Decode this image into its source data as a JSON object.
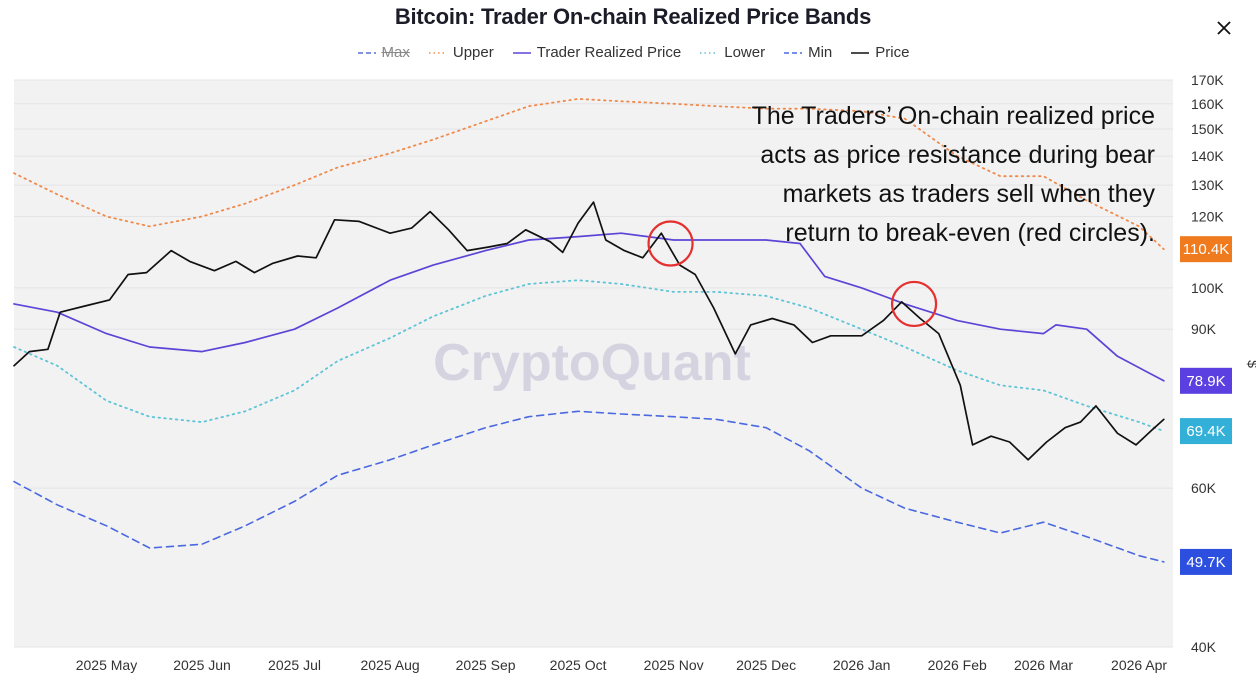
{
  "title": "Bitcoin: Trader On-chain Realized Price Bands",
  "watermark": "CryptoQuant",
  "y_axis_unit": "$",
  "close_icon": "close-icon",
  "annotation": {
    "lines": [
      "The Traders’ On-chain realized price",
      "acts as price resistance during bear",
      "markets as traders sell when they",
      "return to break-even (red circles)."
    ]
  },
  "chart_data": {
    "type": "line",
    "y_scale": "log",
    "ylim": [
      40000,
      170000
    ],
    "y_ticks": [
      {
        "value": 170000,
        "label": "170K"
      },
      {
        "value": 160000,
        "label": "160K"
      },
      {
        "value": 150000,
        "label": "150K"
      },
      {
        "value": 140000,
        "label": "140K"
      },
      {
        "value": 130000,
        "label": "130K"
      },
      {
        "value": 120000,
        "label": "120K"
      },
      {
        "value": 100000,
        "label": "100K"
      },
      {
        "value": 90000,
        "label": "90K"
      },
      {
        "value": 60000,
        "label": "60K"
      },
      {
        "value": 40000,
        "label": "40K"
      }
    ],
    "xlim": [
      "2025-04-01",
      "2026-04-12"
    ],
    "x_ticks": [
      {
        "date": "2025-05-01",
        "label": "2025 May"
      },
      {
        "date": "2025-06-01",
        "label": "2025 Jun"
      },
      {
        "date": "2025-07-01",
        "label": "2025 Jul"
      },
      {
        "date": "2025-08-01",
        "label": "2025 Aug"
      },
      {
        "date": "2025-09-01",
        "label": "2025 Sep"
      },
      {
        "date": "2025-10-01",
        "label": "2025 Oct"
      },
      {
        "date": "2025-11-01",
        "label": "2025 Nov"
      },
      {
        "date": "2025-12-01",
        "label": "2025 Dec"
      },
      {
        "date": "2026-01-01",
        "label": "2026 Jan"
      },
      {
        "date": "2026-02-01",
        "label": "2026 Feb"
      },
      {
        "date": "2026-03-01",
        "label": "2026 Mar"
      },
      {
        "date": "2026-04-01",
        "label": "2026 Apr"
      }
    ],
    "series": [
      {
        "name": "Max",
        "color": "#5a6fd6",
        "style": "dashed",
        "visible": false,
        "points": []
      },
      {
        "name": "Upper",
        "color": "#f08a4b",
        "style": "dotted",
        "visible": true,
        "points": [
          [
            "2025-04-01",
            134000
          ],
          [
            "2025-04-15",
            127000
          ],
          [
            "2025-05-01",
            120000
          ],
          [
            "2025-05-15",
            117000
          ],
          [
            "2025-06-01",
            120000
          ],
          [
            "2025-06-15",
            124000
          ],
          [
            "2025-07-01",
            130000
          ],
          [
            "2025-07-15",
            136000
          ],
          [
            "2025-08-01",
            141000
          ],
          [
            "2025-08-15",
            146000
          ],
          [
            "2025-09-01",
            153000
          ],
          [
            "2025-09-15",
            159000
          ],
          [
            "2025-10-01",
            162000
          ],
          [
            "2025-10-15",
            161000
          ],
          [
            "2025-11-01",
            160000
          ],
          [
            "2025-11-15",
            159000
          ],
          [
            "2025-12-01",
            158000
          ],
          [
            "2025-12-15",
            158000
          ],
          [
            "2026-01-01",
            157000
          ],
          [
            "2026-01-15",
            154000
          ],
          [
            "2026-02-01",
            140000
          ],
          [
            "2026-02-15",
            133000
          ],
          [
            "2026-03-01",
            133000
          ],
          [
            "2026-03-15",
            125000
          ],
          [
            "2026-04-01",
            117000
          ],
          [
            "2026-04-09",
            110400
          ]
        ]
      },
      {
        "name": "Trader Realized Price",
        "color": "#5b45d6",
        "style": "solid",
        "visible": true,
        "points": [
          [
            "2025-04-01",
            96000
          ],
          [
            "2025-04-15",
            94000
          ],
          [
            "2025-05-01",
            89000
          ],
          [
            "2025-05-15",
            86000
          ],
          [
            "2025-06-01",
            85000
          ],
          [
            "2025-06-15",
            87000
          ],
          [
            "2025-07-01",
            90000
          ],
          [
            "2025-07-15",
            95000
          ],
          [
            "2025-08-01",
            102000
          ],
          [
            "2025-08-15",
            106000
          ],
          [
            "2025-09-01",
            110000
          ],
          [
            "2025-09-15",
            113000
          ],
          [
            "2025-10-01",
            114000
          ],
          [
            "2025-10-15",
            115000
          ],
          [
            "2025-11-01",
            113000
          ],
          [
            "2025-11-15",
            113000
          ],
          [
            "2025-12-01",
            113000
          ],
          [
            "2025-12-12",
            112000
          ],
          [
            "2025-12-20",
            103000
          ],
          [
            "2026-01-01",
            100000
          ],
          [
            "2026-01-15",
            96000
          ],
          [
            "2026-02-01",
            92000
          ],
          [
            "2026-02-15",
            90000
          ],
          [
            "2026-03-01",
            89000
          ],
          [
            "2026-03-05",
            91000
          ],
          [
            "2026-03-15",
            90000
          ],
          [
            "2026-03-25",
            84000
          ],
          [
            "2026-04-09",
            78900
          ]
        ]
      },
      {
        "name": "Lower",
        "color": "#5ec4d6",
        "style": "dotted",
        "visible": true,
        "points": [
          [
            "2025-04-01",
            86000
          ],
          [
            "2025-04-15",
            82000
          ],
          [
            "2025-05-01",
            75000
          ],
          [
            "2025-05-15",
            72000
          ],
          [
            "2025-06-01",
            71000
          ],
          [
            "2025-06-15",
            73000
          ],
          [
            "2025-07-01",
            77000
          ],
          [
            "2025-07-15",
            83000
          ],
          [
            "2025-08-01",
            88000
          ],
          [
            "2025-08-15",
            93000
          ],
          [
            "2025-09-01",
            98000
          ],
          [
            "2025-09-15",
            101000
          ],
          [
            "2025-10-01",
            102000
          ],
          [
            "2025-10-15",
            101000
          ],
          [
            "2025-11-01",
            99000
          ],
          [
            "2025-11-15",
            99000
          ],
          [
            "2025-12-01",
            98000
          ],
          [
            "2025-12-15",
            95000
          ],
          [
            "2026-01-01",
            90000
          ],
          [
            "2026-01-15",
            86000
          ],
          [
            "2026-02-01",
            81000
          ],
          [
            "2026-02-15",
            78000
          ],
          [
            "2026-03-01",
            77000
          ],
          [
            "2026-03-15",
            74000
          ],
          [
            "2026-04-01",
            71000
          ],
          [
            "2026-04-09",
            69400
          ]
        ]
      },
      {
        "name": "Min",
        "color": "#4a68e0",
        "style": "dashed",
        "visible": true,
        "points": [
          [
            "2025-04-01",
            61000
          ],
          [
            "2025-04-15",
            57500
          ],
          [
            "2025-05-01",
            54500
          ],
          [
            "2025-05-15",
            51500
          ],
          [
            "2025-06-01",
            52000
          ],
          [
            "2025-06-15",
            54500
          ],
          [
            "2025-07-01",
            58000
          ],
          [
            "2025-07-15",
            62000
          ],
          [
            "2025-08-01",
            64500
          ],
          [
            "2025-08-15",
            67000
          ],
          [
            "2025-09-01",
            70000
          ],
          [
            "2025-09-15",
            72000
          ],
          [
            "2025-10-01",
            73000
          ],
          [
            "2025-10-15",
            72500
          ],
          [
            "2025-11-01",
            72000
          ],
          [
            "2025-11-15",
            71500
          ],
          [
            "2025-12-01",
            70000
          ],
          [
            "2025-12-15",
            66000
          ],
          [
            "2026-01-01",
            60000
          ],
          [
            "2026-01-15",
            57000
          ],
          [
            "2026-02-01",
            55000
          ],
          [
            "2026-02-15",
            53500
          ],
          [
            "2026-03-01",
            55000
          ],
          [
            "2026-03-15",
            53000
          ],
          [
            "2026-04-01",
            50500
          ],
          [
            "2026-04-09",
            49700
          ]
        ]
      },
      {
        "name": "Price",
        "color": "#111111",
        "style": "solid",
        "visible": true,
        "points": [
          [
            "2025-04-01",
            82000
          ],
          [
            "2025-04-06",
            85000
          ],
          [
            "2025-04-12",
            85500
          ],
          [
            "2025-04-16",
            94000
          ],
          [
            "2025-04-24",
            95500
          ],
          [
            "2025-05-02",
            97000
          ],
          [
            "2025-05-08",
            103500
          ],
          [
            "2025-05-14",
            104000
          ],
          [
            "2025-05-22",
            110000
          ],
          [
            "2025-05-28",
            107000
          ],
          [
            "2025-06-05",
            104500
          ],
          [
            "2025-06-12",
            107000
          ],
          [
            "2025-06-18",
            104000
          ],
          [
            "2025-06-24",
            106500
          ],
          [
            "2025-07-02",
            108500
          ],
          [
            "2025-07-08",
            108000
          ],
          [
            "2025-07-14",
            119000
          ],
          [
            "2025-07-22",
            118500
          ],
          [
            "2025-08-01",
            115000
          ],
          [
            "2025-08-08",
            116500
          ],
          [
            "2025-08-14",
            121500
          ],
          [
            "2025-08-20",
            116000
          ],
          [
            "2025-08-26",
            110000
          ],
          [
            "2025-09-02",
            111000
          ],
          [
            "2025-09-08",
            112000
          ],
          [
            "2025-09-14",
            116000
          ],
          [
            "2025-09-22",
            112500
          ],
          [
            "2025-09-26",
            109500
          ],
          [
            "2025-10-01",
            118000
          ],
          [
            "2025-10-06",
            124500
          ],
          [
            "2025-10-10",
            113000
          ],
          [
            "2025-10-16",
            110000
          ],
          [
            "2025-10-22",
            108000
          ],
          [
            "2025-10-28",
            115000
          ],
          [
            "2025-11-03",
            106000
          ],
          [
            "2025-11-08",
            103500
          ],
          [
            "2025-11-14",
            95000
          ],
          [
            "2025-11-21",
            84500
          ],
          [
            "2025-11-26",
            91000
          ],
          [
            "2025-12-03",
            92500
          ],
          [
            "2025-12-10",
            91000
          ],
          [
            "2025-12-16",
            87000
          ],
          [
            "2025-12-22",
            88500
          ],
          [
            "2026-01-01",
            88500
          ],
          [
            "2026-01-08",
            92000
          ],
          [
            "2026-01-14",
            96500
          ],
          [
            "2026-01-20",
            92500
          ],
          [
            "2026-01-26",
            89000
          ],
          [
            "2026-02-02",
            78000
          ],
          [
            "2026-02-06",
            67000
          ],
          [
            "2026-02-12",
            68500
          ],
          [
            "2026-02-18",
            67500
          ],
          [
            "2026-02-24",
            64500
          ],
          [
            "2026-03-02",
            67500
          ],
          [
            "2026-03-08",
            70000
          ],
          [
            "2026-03-13",
            71000
          ],
          [
            "2026-03-18",
            74000
          ],
          [
            "2026-03-25",
            69000
          ],
          [
            "2026-03-31",
            67000
          ],
          [
            "2026-04-05",
            69500
          ],
          [
            "2026-04-09",
            71500
          ]
        ]
      }
    ],
    "end_labels": [
      {
        "series": "Upper",
        "value": 110400,
        "label": "110.4K",
        "color": "#f07b1f"
      },
      {
        "series": "Trader Realized Price",
        "value": 78900,
        "label": "78.9K",
        "color": "#5b3fe0"
      },
      {
        "series": "Lower",
        "value": 69400,
        "label": "69.4K",
        "color": "#32b0d8"
      },
      {
        "series": "Min",
        "value": 49700,
        "label": "49.7K",
        "color": "#2d4fe0"
      }
    ],
    "highlights": [
      {
        "date": "2025-10-31",
        "value": 112000,
        "color": "#e53030"
      },
      {
        "date": "2026-01-18",
        "value": 96000,
        "color": "#e53030"
      }
    ],
    "grid": true,
    "legend_position": "top-center"
  }
}
